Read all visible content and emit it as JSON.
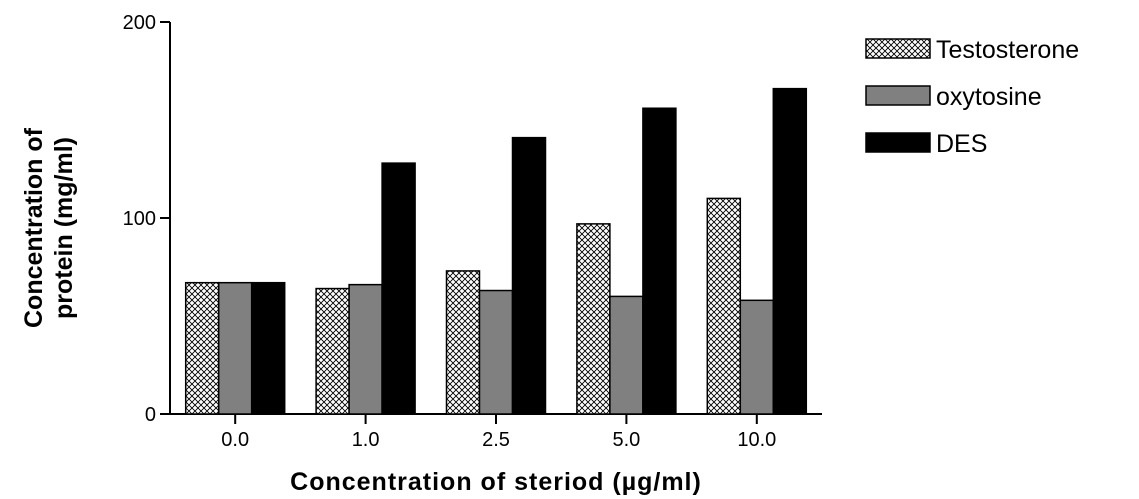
{
  "chart_data": {
    "type": "bar",
    "title": "",
    "xlabel": "Concentration of steriod (µg/ml)",
    "ylabel_lines": [
      "Concentration of",
      "protein (mg/ml)"
    ],
    "categories": [
      "0.0",
      "1.0",
      "2.5",
      "5.0",
      "10.0"
    ],
    "series": [
      {
        "name": "Testosterone",
        "values": [
          67,
          64,
          73,
          97,
          110
        ],
        "fill": "crosshatch",
        "color": "#ffffff"
      },
      {
        "name": "oxytosine",
        "values": [
          67,
          66,
          63,
          60,
          58
        ],
        "fill": "solid",
        "color": "#808080"
      },
      {
        "name": "DES",
        "values": [
          67,
          128,
          141,
          156,
          166
        ],
        "fill": "solid",
        "color": "#000000"
      }
    ],
    "ylim": [
      0,
      200
    ],
    "yticks": [
      "0",
      "100",
      "200"
    ],
    "grid": false,
    "legend_position": "top-right"
  }
}
